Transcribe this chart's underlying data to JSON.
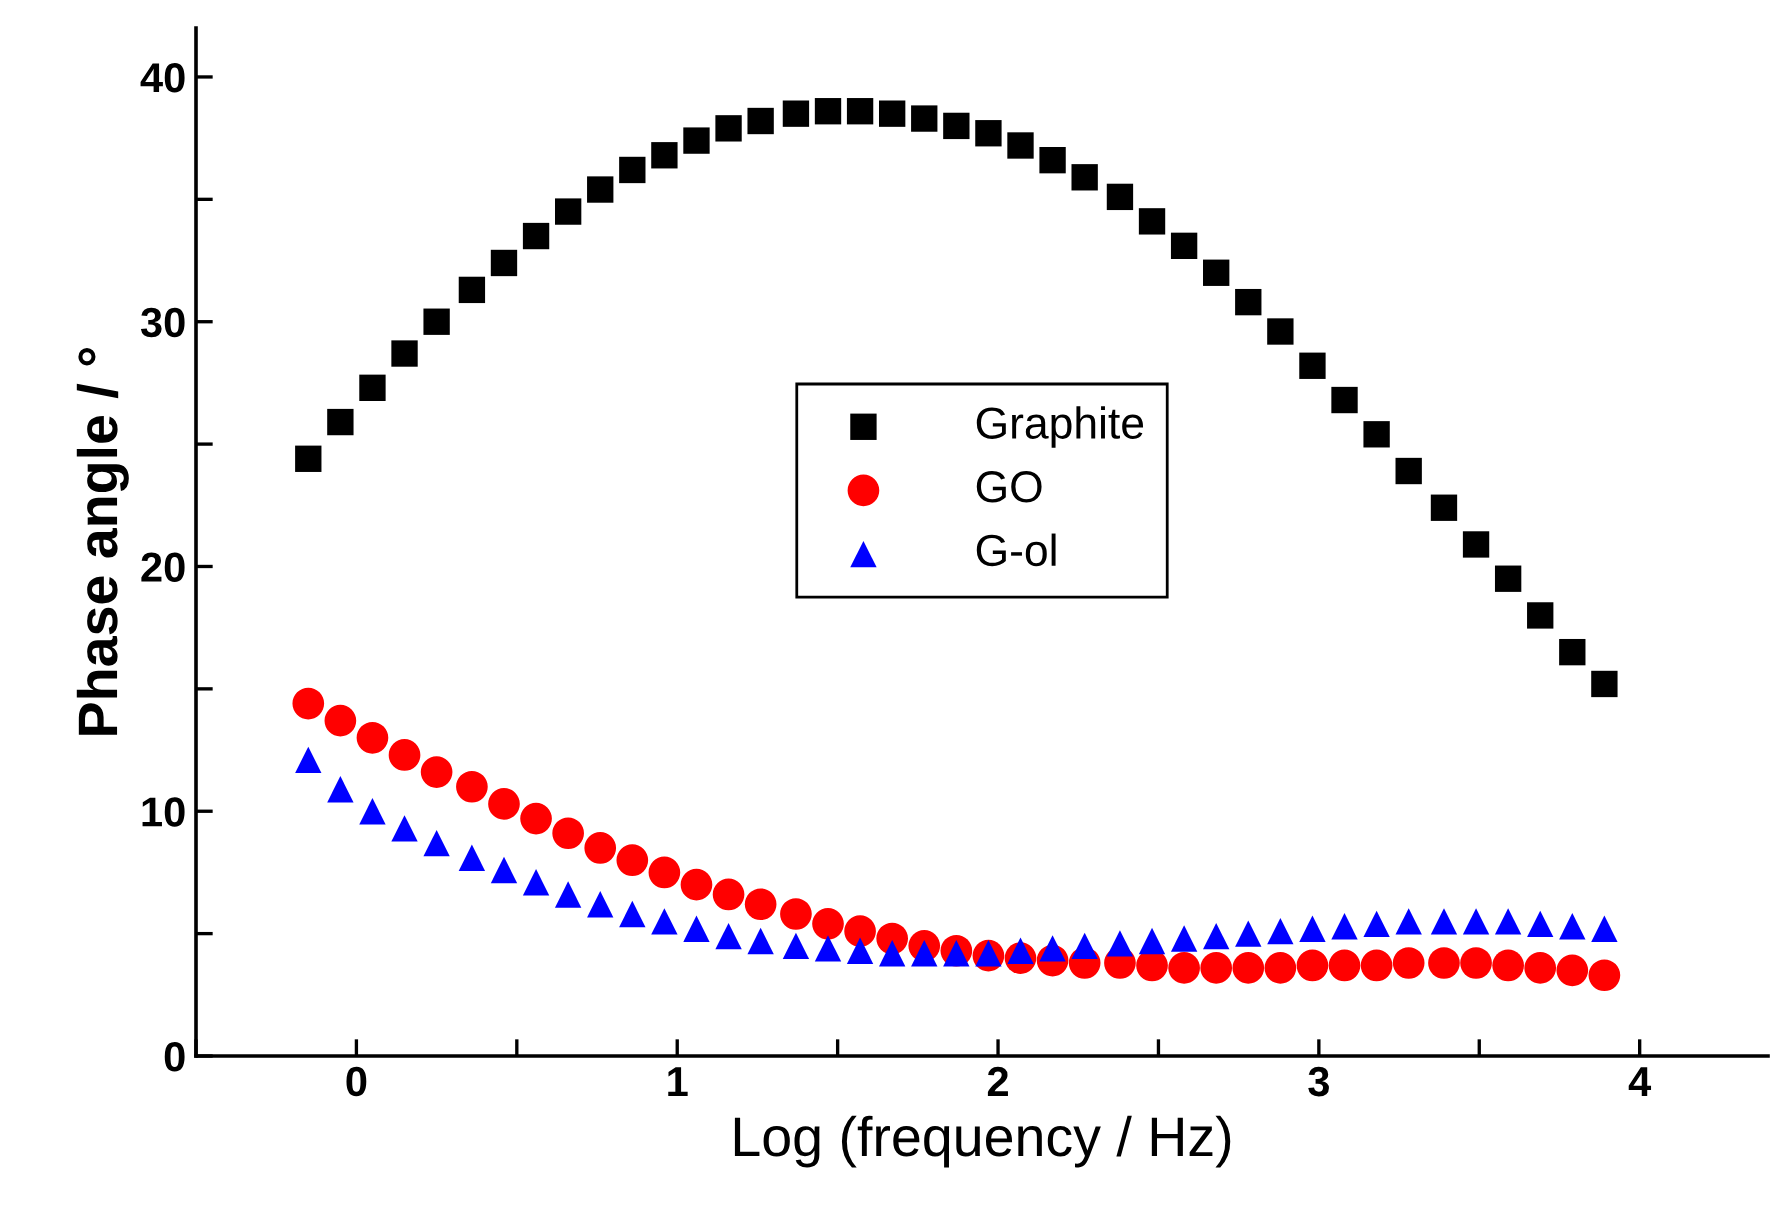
{
  "chart_data": {
    "type": "scatter",
    "xlabel": "Log (frequency / Hz)",
    "ylabel": "Phase angle / °",
    "x": [
      -0.15,
      -0.05,
      0.05,
      0.15,
      0.25,
      0.36,
      0.46,
      0.56,
      0.66,
      0.76,
      0.86,
      0.96,
      1.06,
      1.16,
      1.26,
      1.37,
      1.47,
      1.57,
      1.67,
      1.77,
      1.87,
      1.97,
      2.07,
      2.17,
      2.27,
      2.38,
      2.48,
      2.58,
      2.68,
      2.78,
      2.88,
      2.98,
      3.08,
      3.18,
      3.28,
      3.39,
      3.49,
      3.59,
      3.69,
      3.79,
      3.89
    ],
    "series": [
      {
        "name": "Graphite",
        "color": "#000000",
        "marker": "square",
        "values": [
          24.4,
          25.9,
          27.3,
          28.7,
          30.0,
          31.3,
          32.4,
          33.5,
          34.5,
          35.4,
          36.2,
          36.8,
          37.4,
          37.9,
          38.2,
          38.5,
          38.6,
          38.6,
          38.5,
          38.3,
          38.0,
          37.7,
          37.2,
          36.6,
          35.9,
          35.1,
          34.1,
          33.1,
          32.0,
          30.8,
          29.6,
          28.2,
          26.8,
          25.4,
          23.9,
          22.4,
          20.9,
          19.5,
          18.0,
          16.5,
          15.2
        ]
      },
      {
        "name": "GO",
        "color": "#ff0000",
        "marker": "circle",
        "values": [
          14.4,
          13.7,
          13.0,
          12.3,
          11.6,
          11.0,
          10.3,
          9.7,
          9.1,
          8.5,
          8.0,
          7.5,
          7.0,
          6.6,
          6.2,
          5.8,
          5.4,
          5.1,
          4.8,
          4.5,
          4.3,
          4.1,
          4.0,
          3.9,
          3.8,
          3.8,
          3.7,
          3.6,
          3.6,
          3.6,
          3.6,
          3.7,
          3.7,
          3.7,
          3.8,
          3.8,
          3.8,
          3.7,
          3.6,
          3.5,
          3.3
        ]
      },
      {
        "name": "G-ol",
        "color": "#0000ff",
        "marker": "triangle",
        "values": [
          12.1,
          10.9,
          10.0,
          9.3,
          8.7,
          8.1,
          7.6,
          7.1,
          6.6,
          6.2,
          5.8,
          5.5,
          5.2,
          4.9,
          4.7,
          4.5,
          4.4,
          4.3,
          4.2,
          4.2,
          4.2,
          4.2,
          4.3,
          4.4,
          4.5,
          4.6,
          4.7,
          4.8,
          4.9,
          5.0,
          5.1,
          5.2,
          5.3,
          5.4,
          5.5,
          5.5,
          5.5,
          5.5,
          5.4,
          5.3,
          5.2
        ]
      }
    ],
    "xlim": [
      -0.5,
      4.4
    ],
    "ylim": [
      0,
      42
    ],
    "xticks": [
      {
        "value": -0.5,
        "label": null
      },
      0,
      {
        "value": 0.5,
        "label": null
      },
      1,
      {
        "value": 1.5,
        "label": null
      },
      2,
      {
        "value": 2.5,
        "label": null
      },
      3,
      {
        "value": 3.5,
        "label": null
      },
      4
    ],
    "yticks": [
      0,
      {
        "value": 5,
        "label": null
      },
      10,
      {
        "value": 15,
        "label": null
      },
      20,
      {
        "value": 25,
        "label": null
      },
      30,
      {
        "value": 35,
        "label": null
      },
      40
    ],
    "grid": false,
    "legend": "center"
  }
}
